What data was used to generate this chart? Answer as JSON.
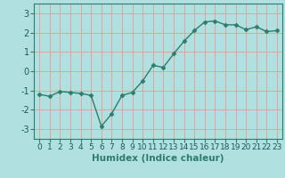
{
  "x": [
    0,
    1,
    2,
    3,
    4,
    5,
    6,
    7,
    8,
    9,
    10,
    11,
    12,
    13,
    14,
    15,
    16,
    17,
    18,
    19,
    20,
    21,
    22,
    23
  ],
  "y": [
    -1.2,
    -1.3,
    -1.05,
    -1.1,
    -1.15,
    -1.25,
    -2.85,
    -2.2,
    -1.25,
    -1.1,
    -0.5,
    0.3,
    0.2,
    0.9,
    1.55,
    2.1,
    2.55,
    2.6,
    2.4,
    2.4,
    2.15,
    2.3,
    2.05,
    2.1
  ],
  "line_color": "#2d7d6e",
  "marker": "D",
  "marker_size": 2.5,
  "bg_color": "#b0e0e0",
  "plot_bg_color": "#b0e0e0",
  "grid_color": "#e8a0a0",
  "xlabel": "Humidex (Indice chaleur)",
  "xlim": [
    -0.5,
    23.5
  ],
  "ylim": [
    -3.5,
    3.5
  ],
  "yticks": [
    -3,
    -2,
    -1,
    0,
    1,
    2,
    3
  ],
  "xticks": [
    0,
    1,
    2,
    3,
    4,
    5,
    6,
    7,
    8,
    9,
    10,
    11,
    12,
    13,
    14,
    15,
    16,
    17,
    18,
    19,
    20,
    21,
    22,
    23
  ],
  "font_size": 6.5,
  "xlabel_fontsize": 7.5,
  "ytick_fontsize": 7
}
